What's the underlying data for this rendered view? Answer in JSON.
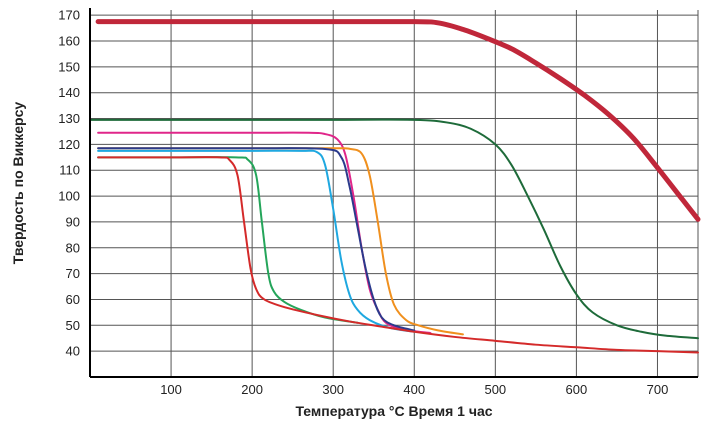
{
  "chart_data": {
    "type": "line",
    "title": "",
    "xlabel": "Температура °C Время 1 час",
    "ylabel": "Твердость по Виккерсу",
    "xlim": [
      0,
      750
    ],
    "ylim": [
      30,
      172
    ],
    "x_ticks": [
      "100",
      "200",
      "300",
      "400",
      "500",
      "600",
      "700"
    ],
    "y_ticks": [
      "40",
      "50",
      "60",
      "70",
      "80",
      "90",
      "100",
      "110",
      "120",
      "130",
      "140",
      "150",
      "160",
      "170"
    ],
    "grid": true,
    "legend": "none",
    "series": [
      {
        "color": "#c0273a",
        "width": 5,
        "points": [
          [
            10,
            167.5
          ],
          [
            100,
            167.5
          ],
          [
            200,
            167.5
          ],
          [
            300,
            167.5
          ],
          [
            400,
            167.5
          ],
          [
            430,
            167
          ],
          [
            460,
            164.5
          ],
          [
            490,
            161
          ],
          [
            520,
            157
          ],
          [
            550,
            151.5
          ],
          [
            580,
            145.5
          ],
          [
            610,
            139
          ],
          [
            640,
            131.5
          ],
          [
            670,
            122.5
          ],
          [
            700,
            111
          ],
          [
            730,
            99
          ],
          [
            750,
            91
          ]
        ]
      },
      {
        "color": "#1e6b3a",
        "width": 2,
        "points": [
          [
            0,
            129.5
          ],
          [
            100,
            129.5
          ],
          [
            200,
            129.5
          ],
          [
            300,
            129.5
          ],
          [
            400,
            129.5
          ],
          [
            440,
            128.5
          ],
          [
            470,
            126
          ],
          [
            500,
            120
          ],
          [
            520,
            112
          ],
          [
            540,
            100
          ],
          [
            560,
            87
          ],
          [
            580,
            73
          ],
          [
            600,
            62
          ],
          [
            620,
            55
          ],
          [
            650,
            50
          ],
          [
            680,
            47.5
          ],
          [
            710,
            46
          ],
          [
            750,
            45
          ]
        ]
      },
      {
        "color": "#e0268a",
        "width": 2,
        "points": [
          [
            10,
            124.5
          ],
          [
            100,
            124.5
          ],
          [
            200,
            124.5
          ],
          [
            270,
            124.5
          ],
          [
            290,
            124
          ],
          [
            305,
            122
          ],
          [
            315,
            116
          ],
          [
            325,
            100
          ],
          [
            335,
            80
          ],
          [
            345,
            64
          ],
          [
            355,
            56
          ],
          [
            365,
            51
          ],
          [
            385,
            48.5
          ],
          [
            420,
            47
          ]
        ]
      },
      {
        "color": "#f0901e",
        "width": 2,
        "points": [
          [
            10,
            118.5
          ],
          [
            100,
            118.5
          ],
          [
            200,
            118.5
          ],
          [
            300,
            118.5
          ],
          [
            320,
            118.3
          ],
          [
            335,
            116.5
          ],
          [
            345,
            108
          ],
          [
            355,
            90
          ],
          [
            365,
            70
          ],
          [
            375,
            58
          ],
          [
            390,
            52
          ],
          [
            405,
            50
          ],
          [
            430,
            48
          ],
          [
            460,
            46.5
          ]
        ]
      },
      {
        "color": "#2b3a8c",
        "width": 2,
        "points": [
          [
            10,
            118.5
          ],
          [
            100,
            118.5
          ],
          [
            200,
            118.5
          ],
          [
            290,
            118.2
          ],
          [
            310,
            115
          ],
          [
            320,
            104
          ],
          [
            330,
            88
          ],
          [
            340,
            72
          ],
          [
            350,
            60
          ],
          [
            360,
            53
          ],
          [
            375,
            50
          ],
          [
            400,
            48
          ]
        ]
      },
      {
        "color": "#1fa8e0",
        "width": 2,
        "points": [
          [
            10,
            117.5
          ],
          [
            100,
            117.5
          ],
          [
            200,
            117.5
          ],
          [
            260,
            117.5
          ],
          [
            280,
            117
          ],
          [
            290,
            112
          ],
          [
            300,
            95
          ],
          [
            310,
            75
          ],
          [
            320,
            62
          ],
          [
            330,
            56
          ],
          [
            345,
            52
          ],
          [
            370,
            49
          ],
          [
            400,
            47.5
          ]
        ]
      },
      {
        "color": "#24a55a",
        "width": 2,
        "points": [
          [
            10,
            115
          ],
          [
            100,
            115
          ],
          [
            180,
            115
          ],
          [
            195,
            114
          ],
          [
            205,
            108
          ],
          [
            212,
            90
          ],
          [
            220,
            70
          ],
          [
            227,
            63
          ],
          [
            240,
            59
          ],
          [
            260,
            56
          ],
          [
            290,
            53
          ],
          [
            330,
            51
          ]
        ]
      },
      {
        "color": "#d42a2a",
        "width": 2,
        "points": [
          [
            10,
            115
          ],
          [
            100,
            115
          ],
          [
            160,
            115
          ],
          [
            172,
            114
          ],
          [
            182,
            108
          ],
          [
            190,
            90
          ],
          [
            198,
            72
          ],
          [
            205,
            64
          ],
          [
            215,
            60
          ],
          [
            240,
            57
          ],
          [
            280,
            54
          ],
          [
            320,
            51.5
          ],
          [
            360,
            49.5
          ],
          [
            400,
            47.5
          ],
          [
            450,
            45.5
          ],
          [
            500,
            44
          ],
          [
            550,
            42.5
          ],
          [
            600,
            41.5
          ],
          [
            650,
            40.5
          ],
          [
            700,
            40
          ],
          [
            750,
            39.5
          ]
        ]
      }
    ]
  }
}
